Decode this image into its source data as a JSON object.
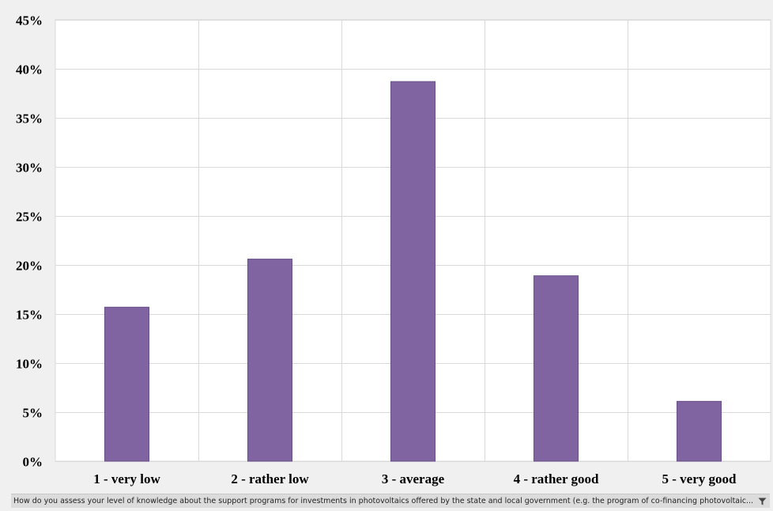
{
  "chart_data": {
    "type": "bar",
    "categories": [
      "1 - very low",
      "2 - rather low",
      "3 - average",
      "4 - rather good",
      "5 - very good"
    ],
    "values": [
      15.7,
      20.6,
      38.7,
      18.9,
      6.1
    ],
    "unit": "%",
    "ylim": [
      0,
      45
    ],
    "yticks": [
      "0%",
      "5%",
      "10%",
      "15%",
      "20%",
      "25%",
      "30%",
      "35%",
      "40%",
      "45%"
    ],
    "ytick_values": [
      0,
      5,
      10,
      15,
      20,
      25,
      30,
      35,
      40,
      45
    ],
    "grid": true,
    "bar_color": "#8064a2",
    "title": "",
    "xlabel": "",
    "ylabel": ""
  },
  "field_bar": {
    "text": "How do you assess your level of knowledge about the support programs for investments in photovoltaics offered by the state and local government (e.g. the program of co-financing photovoltaic...",
    "filter_icon": "filter-icon"
  }
}
